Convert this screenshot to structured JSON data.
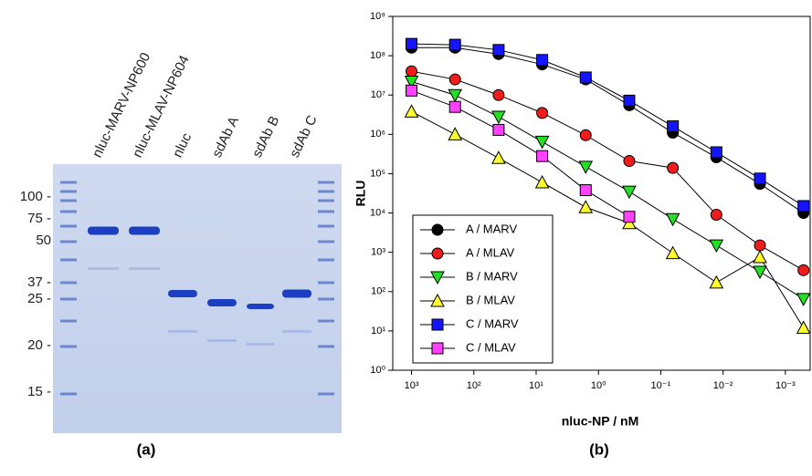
{
  "gel": {
    "lane_labels": [
      "nluc-MARV-NP600",
      "nluc-MLAV-NP604",
      "nluc",
      "sdAb A",
      "sdAb B",
      "sdAb C"
    ],
    "marker_labels": [
      "100 -",
      "75 -",
      "50",
      "37 -",
      "25 -",
      "20 -",
      "15 -"
    ]
  },
  "panel_labels": [
    "(a)",
    "(b)"
  ],
  "chart_data": {
    "type": "line",
    "xlabel": "nluc-NP / nM",
    "ylabel": "RLU",
    "xscale": "log",
    "yscale": "log",
    "legend": "lower left",
    "x": [
      1000,
      200,
      40,
      8,
      1.6,
      0.32,
      0.064,
      0.0128,
      0.00256,
      0.000512
    ],
    "xlim": [
      2000,
      0.0004
    ],
    "ylim": [
      1,
      1000000000
    ],
    "xticks": [
      {
        "value": 1000,
        "label": "10³"
      },
      {
        "value": 100,
        "label": "10²"
      },
      {
        "value": 10,
        "label": "10¹"
      },
      {
        "value": 1,
        "label": "10⁰"
      },
      {
        "value": 0.1,
        "label": "10⁻¹"
      },
      {
        "value": 0.01,
        "label": "10⁻²"
      },
      {
        "value": 0.001,
        "label": "10⁻³"
      }
    ],
    "yticks": [
      {
        "value": 1,
        "label": "10⁰"
      },
      {
        "value": 10,
        "label": "10¹"
      },
      {
        "value": 100,
        "label": "10²"
      },
      {
        "value": 1000,
        "label": "10³"
      },
      {
        "value": 10000,
        "label": "10⁴"
      },
      {
        "value": 100000,
        "label": "10⁵"
      },
      {
        "value": 1000000,
        "label": "10⁶"
      },
      {
        "value": 10000000,
        "label": "10⁷"
      },
      {
        "value": 100000000,
        "label": "10⁸"
      },
      {
        "value": 1000000000,
        "label": "10⁹"
      }
    ],
    "series": [
      {
        "name": "A / MARV",
        "color": "#000000",
        "marker": "circle",
        "values": [
          160000000,
          160000000,
          110000000,
          60000000,
          25000000,
          5500000,
          1100000,
          260000,
          55000,
          10000
        ]
      },
      {
        "name": "A / MLAV",
        "color": "#f01c1c",
        "marker": "circle",
        "values": [
          40000000,
          25000000,
          10000000,
          3500000,
          950000,
          210000,
          140000,
          9000,
          1500,
          350
        ]
      },
      {
        "name": "B / MARV",
        "color": "#22e022",
        "marker": "triangle-down",
        "values": [
          22000000,
          10000000,
          2800000,
          650000,
          150000,
          35000,
          7000,
          1500,
          320,
          65
        ]
      },
      {
        "name": "B / MLAV",
        "color": "#ffff30",
        "marker": "triangle-up",
        "values": [
          3800000,
          1000000,
          250000,
          60000,
          14000,
          5500,
          950,
          170,
          750,
          12
        ]
      },
      {
        "name": "C / MARV",
        "color": "#1414ff",
        "marker": "square",
        "values": [
          200000000,
          190000000,
          140000000,
          78000000,
          28000000,
          7200000,
          1600000,
          350000,
          75000,
          15000
        ]
      },
      {
        "name": "C / MLAV",
        "color": "#ff40ff",
        "marker": "square",
        "values": [
          13000000,
          5000000,
          1300000,
          280000,
          38000,
          8000,
          null,
          null,
          null,
          null
        ]
      }
    ]
  }
}
